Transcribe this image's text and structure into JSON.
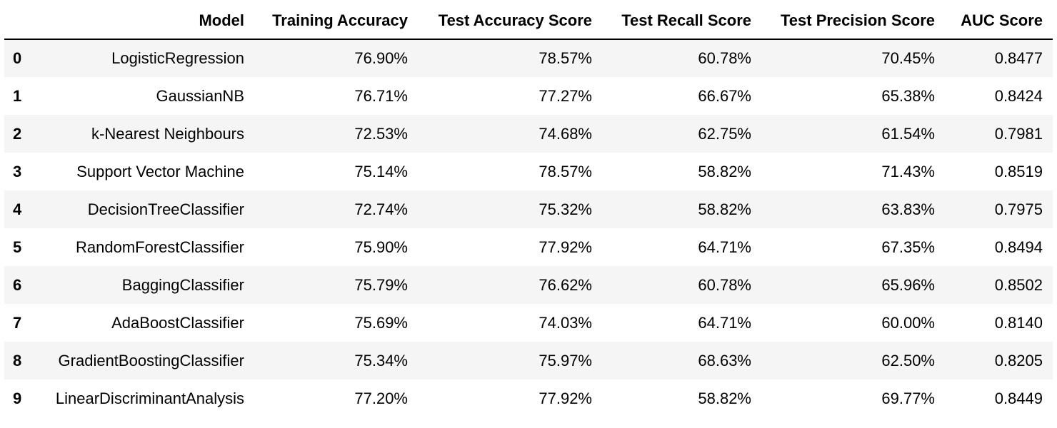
{
  "table": {
    "columns": [
      "",
      "Model",
      "Training Accuracy",
      "Test Accuracy Score",
      "Test Recall Score",
      "Test Precision Score",
      "AUC Score"
    ],
    "rows": [
      [
        "0",
        "LogisticRegression",
        "76.90%",
        "78.57%",
        "60.78%",
        "70.45%",
        "0.8477"
      ],
      [
        "1",
        "GaussianNB",
        "76.71%",
        "77.27%",
        "66.67%",
        "65.38%",
        "0.8424"
      ],
      [
        "2",
        "k-Nearest Neighbours",
        "72.53%",
        "74.68%",
        "62.75%",
        "61.54%",
        "0.7981"
      ],
      [
        "3",
        "Support Vector Machine",
        "75.14%",
        "78.57%",
        "58.82%",
        "71.43%",
        "0.8519"
      ],
      [
        "4",
        "DecisionTreeClassifier",
        "72.74%",
        "75.32%",
        "58.82%",
        "63.83%",
        "0.7975"
      ],
      [
        "5",
        "RandomForestClassifier",
        "75.90%",
        "77.92%",
        "64.71%",
        "67.35%",
        "0.8494"
      ],
      [
        "6",
        "BaggingClassifier",
        "75.79%",
        "76.62%",
        "60.78%",
        "65.96%",
        "0.8502"
      ],
      [
        "7",
        "AdaBoostClassifier",
        "75.69%",
        "74.03%",
        "64.71%",
        "60.00%",
        "0.8140"
      ],
      [
        "8",
        "GradientBoostingClassifier",
        "75.34%",
        "75.97%",
        "68.63%",
        "62.50%",
        "0.8205"
      ],
      [
        "9",
        "LinearDiscriminantAnalysis",
        "77.20%",
        "77.92%",
        "58.82%",
        "69.77%",
        "0.8449"
      ]
    ]
  },
  "colors": {
    "stripe": "#f5f5f5",
    "background": "#ffffff",
    "text": "#000000"
  }
}
